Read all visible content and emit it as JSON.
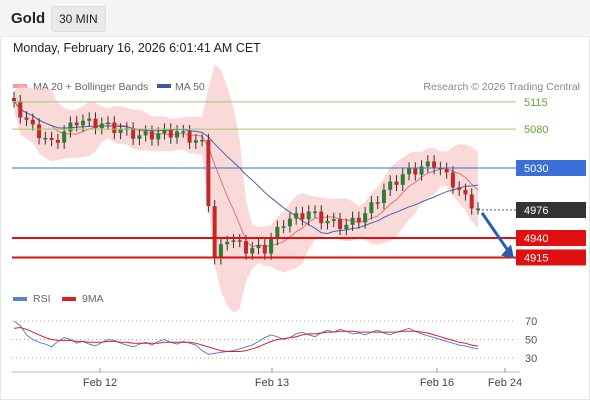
{
  "header": {
    "instrument": "Gold",
    "timeframe": "30 MIN"
  },
  "timestamp": "Monday, February 16, 2026 6:01:41 AM CET",
  "colors": {
    "up": "#2e7d32",
    "down": "#c62828",
    "bands": "#f6b9b9",
    "ma20": "#e57373",
    "ma50": "#4a64b0",
    "resistance": "#9ccc65",
    "pivot": "#3a6fd8",
    "support": "#e01010",
    "rsi": "#5c7fd6",
    "rsi_ma": "#e02020"
  },
  "legend": {
    "ma20_label": "MA 20 + Bollinger Bands",
    "ma50_label": "MA 50",
    "credit": "Research © 2026 Trading Central"
  },
  "rsi_legend": {
    "rsi_label": "RSI",
    "ma_label": "9MA"
  },
  "chart_data": [
    {
      "type": "candlestick",
      "title": "Gold",
      "interval": "30 MIN",
      "x_ticks": [
        "Feb 12",
        "Feb 13",
        "Feb 16",
        "Feb 24"
      ],
      "ylim": [
        4800,
        5200
      ],
      "levels": [
        {
          "label": "5115",
          "value": 5115,
          "role": "resistance"
        },
        {
          "label": "5080",
          "value": 5080,
          "role": "resistance"
        },
        {
          "label": "5030",
          "value": 5030,
          "role": "pivot"
        },
        {
          "label": "4976",
          "value": 4976,
          "role": "last"
        },
        {
          "label": "4940",
          "value": 4940,
          "role": "support"
        },
        {
          "label": "4915",
          "value": 4915,
          "role": "support"
        }
      ],
      "last_price": 4976,
      "projection": {
        "from": 4980,
        "to": 4915,
        "direction": "down"
      },
      "overlays": [
        "MA 20 + Bollinger Bands",
        "MA 50"
      ]
    },
    {
      "type": "line",
      "title": "RSI",
      "series": [
        {
          "name": "RSI",
          "values": [
            70,
            65,
            55,
            50,
            47,
            45,
            42,
            48,
            52,
            50,
            46,
            48,
            45,
            43,
            47,
            50,
            49,
            46,
            44,
            42,
            45,
            47,
            44,
            48,
            50,
            47,
            45,
            48,
            46,
            44,
            38,
            34,
            35,
            36,
            37,
            38,
            40,
            42,
            44,
            48,
            52,
            55,
            53,
            50,
            52,
            56,
            58,
            55,
            53,
            57,
            60,
            58,
            61,
            59,
            56,
            57,
            55,
            58,
            60,
            57,
            55,
            58,
            60,
            62,
            59,
            56,
            54,
            52,
            50,
            48,
            46,
            44,
            43,
            41,
            40
          ]
        },
        {
          "name": "9MA",
          "values": [
            62,
            63,
            61,
            58,
            55,
            52,
            50,
            49,
            49,
            49,
            48,
            48,
            47,
            47,
            47,
            48,
            48,
            47,
            47,
            46,
            46,
            46,
            46,
            46,
            47,
            47,
            47,
            47,
            47,
            46,
            44,
            42,
            40,
            38,
            37,
            37,
            37,
            38,
            40,
            42,
            45,
            48,
            50,
            51,
            52,
            53,
            55,
            56,
            56,
            57,
            58,
            58,
            59,
            59,
            59,
            58,
            58,
            58,
            58,
            58,
            58,
            58,
            59,
            59,
            59,
            58,
            57,
            55,
            53,
            51,
            49,
            47,
            46,
            44,
            43
          ]
        }
      ],
      "yticks": [
        30,
        50,
        70
      ],
      "ylim": [
        20,
        80
      ]
    }
  ]
}
